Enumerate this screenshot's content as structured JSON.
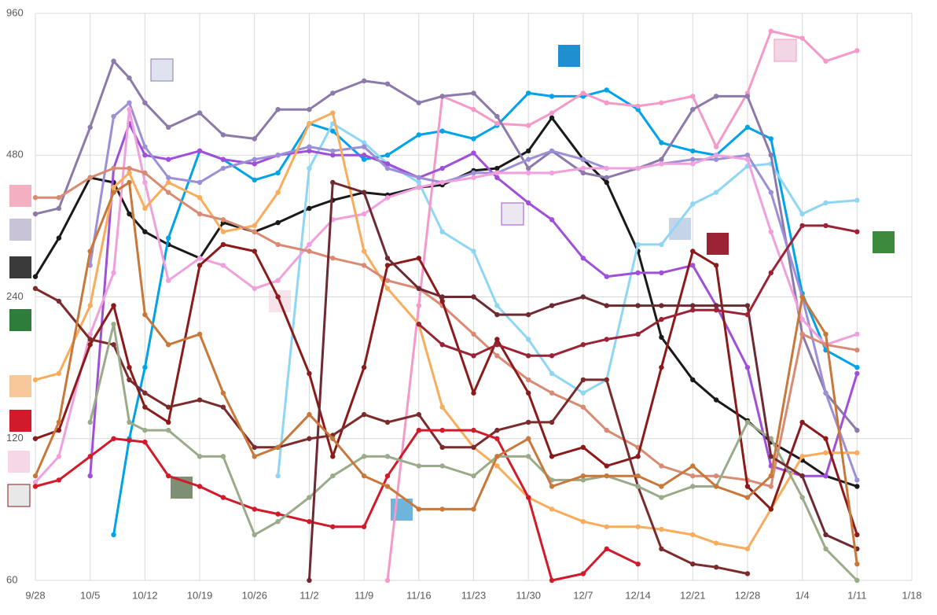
{
  "chart_data": {
    "type": "line",
    "ylog": true,
    "grid": true,
    "ylim": [
      60,
      960
    ],
    "yticks": [
      60,
      120,
      240,
      480,
      960
    ],
    "xlim": [
      0,
      112
    ],
    "xticks": [
      {
        "value": 0,
        "label": "9/28"
      },
      {
        "value": 7,
        "label": "10/5"
      },
      {
        "value": 14,
        "label": "10/12"
      },
      {
        "value": 21,
        "label": "10/19"
      },
      {
        "value": 28,
        "label": "10/26"
      },
      {
        "value": 35,
        "label": "11/2"
      },
      {
        "value": 42,
        "label": "11/9"
      },
      {
        "value": 49,
        "label": "11/16"
      },
      {
        "value": 56,
        "label": "11/23"
      },
      {
        "value": 63,
        "label": "11/30"
      },
      {
        "value": 70,
        "label": "12/7"
      },
      {
        "value": 77,
        "label": "12/14"
      },
      {
        "value": 84,
        "label": "12/21"
      },
      {
        "value": 91,
        "label": "12/28"
      },
      {
        "value": 98,
        "label": "1/4"
      },
      {
        "value": 105,
        "label": "1/11"
      },
      {
        "value": 112,
        "label": "1/18"
      }
    ],
    "x": [
      0,
      3,
      7,
      10,
      12,
      14,
      17,
      21,
      24,
      28,
      31,
      35,
      38,
      42,
      45,
      49,
      52,
      56,
      59,
      63,
      66,
      70,
      73,
      77,
      80,
      84,
      87,
      91,
      94,
      98,
      101,
      105
    ],
    "series": [
      {
        "color": "#1a1a1a",
        "values": [
          265,
          320,
          430,
          420,
          360,
          330,
          310,
          290,
          345,
          330,
          345,
          370,
          385,
          400,
          395,
          410,
          415,
          445,
          450,
          490,
          576,
          470,
          420,
          300,
          197,
          160,
          145,
          131,
          118,
          108,
          100,
          95
        ]
      },
      {
        "color": "#00a2e8",
        "values": [
          null,
          null,
          null,
          75,
          120,
          170,
          320,
          490,
          470,
          425,
          440,
          560,
          540,
          470,
          480,
          530,
          540,
          520,
          555,
          650,
          640,
          640,
          660,
          600,
          510,
          490,
          480,
          550,
          520,
          244,
          185,
          170
        ]
      },
      {
        "color": "#8fd6f4",
        "values": [
          null,
          null,
          null,
          null,
          null,
          null,
          null,
          null,
          null,
          null,
          100,
          450,
          560,
          510,
          460,
          420,
          330,
          300,
          230,
          195,
          165,
          150,
          160,
          310,
          310,
          378,
          400,
          455,
          460,
          360,
          380,
          385
        ]
      },
      {
        "color": "#f59ac8",
        "values": [
          null,
          null,
          null,
          null,
          null,
          null,
          null,
          null,
          null,
          null,
          null,
          null,
          null,
          null,
          60,
          230,
          640,
          600,
          560,
          555,
          590,
          650,
          620,
          610,
          620,
          640,
          500,
          650,
          880,
          850,
          760,
          800
        ]
      },
      {
        "color": "#8c7aa9",
        "values": [
          360,
          370,
          550,
          760,
          700,
          620,
          550,
          590,
          530,
          520,
          600,
          600,
          650,
          690,
          680,
          620,
          640,
          650,
          580,
          450,
          490,
          440,
          430,
          450,
          470,
          600,
          640,
          640,
          480,
          200,
          150,
          125
        ]
      },
      {
        "color": "#a050d8",
        "values": [
          null,
          null,
          100,
          450,
          560,
          480,
          470,
          490,
          470,
          460,
          480,
          490,
          480,
          480,
          460,
          430,
          450,
          485,
          430,
          380,
          350,
          290,
          265,
          270,
          270,
          280,
          230,
          170,
          105,
          100,
          100,
          165
        ]
      },
      {
        "color": "#9c8fd8",
        "values": [
          null,
          null,
          280,
          580,
          620,
          500,
          430,
          420,
          450,
          470,
          480,
          500,
          490,
          500,
          450,
          430,
          420,
          440,
          440,
          470,
          490,
          470,
          450,
          450,
          460,
          470,
          470,
          480,
          400,
          240,
          150,
          98
        ]
      },
      {
        "color": "#f0a0dc",
        "values": [
          97,
          110,
          200,
          270,
          600,
          420,
          260,
          290,
          280,
          250,
          260,
          310,
          350,
          360,
          390,
          410,
          420,
          430,
          440,
          440,
          440,
          450,
          450,
          450,
          460,
          460,
          480,
          470,
          330,
          215,
          190,
          200
        ]
      },
      {
        "color": "#f8ac5c",
        "values": [
          160,
          165,
          230,
          410,
          440,
          370,
          420,
          390,
          330,
          340,
          400,
          560,
          590,
          300,
          250,
          210,
          140,
          115,
          105,
          90,
          85,
          80,
          78,
          78,
          77,
          75,
          72,
          70,
          85,
          110,
          112,
          112
        ]
      },
      {
        "color": "#d98a73",
        "values": [
          390,
          390,
          430,
          450,
          450,
          440,
          400,
          360,
          350,
          330,
          310,
          300,
          290,
          280,
          260,
          250,
          230,
          200,
          180,
          160,
          150,
          140,
          125,
          115,
          105,
          100,
          100,
          98,
          95,
          200,
          190,
          185
        ]
      },
      {
        "color": "#8b1a1a",
        "values": [
          120,
          125,
          190,
          230,
          170,
          140,
          130,
          280,
          310,
          300,
          240,
          165,
          110,
          170,
          280,
          290,
          235,
          150,
          195,
          150,
          110,
          115,
          105,
          110,
          170,
          300,
          280,
          95,
          85,
          130,
          120,
          75
        ]
      },
      {
        "color": "#7b2b2b",
        "values": [
          250,
          235,
          195,
          190,
          160,
          150,
          140,
          145,
          140,
          115,
          115,
          120,
          122,
          135,
          130,
          135,
          115,
          115,
          125,
          130,
          130,
          160,
          160,
          95,
          70,
          65,
          64,
          62,
          null,
          null,
          null,
          null
        ]
      },
      {
        "color": "#d11a2a",
        "values": [
          95,
          98,
          110,
          120,
          119,
          118,
          100,
          95,
          90,
          85,
          83,
          80,
          78,
          78,
          100,
          125,
          125,
          125,
          120,
          90,
          60,
          62,
          70,
          65,
          null,
          null,
          null,
          null,
          null,
          null,
          null,
          null
        ]
      },
      {
        "color": "#9aab8a",
        "values": [
          null,
          null,
          130,
          210,
          130,
          125,
          125,
          110,
          110,
          75,
          80,
          90,
          100,
          110,
          110,
          105,
          105,
          100,
          110,
          110,
          98,
          98,
          100,
          95,
          90,
          95,
          95,
          130,
          120,
          90,
          70,
          60
        ]
      },
      {
        "color": "#6e2a32",
        "values": [
          null,
          null,
          null,
          null,
          null,
          null,
          null,
          null,
          null,
          null,
          null,
          60,
          420,
          400,
          290,
          250,
          240,
          240,
          220,
          220,
          230,
          240,
          230,
          230,
          230,
          230,
          230,
          230,
          110,
          100,
          75,
          70
        ]
      },
      {
        "color": "#9b2335",
        "values": [
          null,
          null,
          null,
          null,
          null,
          null,
          null,
          null,
          null,
          null,
          null,
          null,
          null,
          null,
          null,
          210,
          190,
          180,
          190,
          180,
          180,
          190,
          195,
          200,
          215,
          225,
          225,
          220,
          270,
          340,
          340,
          330
        ]
      },
      {
        "color": "#c8783a",
        "values": [
          100,
          130,
          300,
          400,
          420,
          220,
          190,
          200,
          150,
          110,
          115,
          135,
          120,
          100,
          95,
          85,
          85,
          85,
          110,
          120,
          95,
          100,
          100,
          100,
          95,
          105,
          95,
          90,
          100,
          240,
          200,
          65
        ]
      }
    ]
  }
}
